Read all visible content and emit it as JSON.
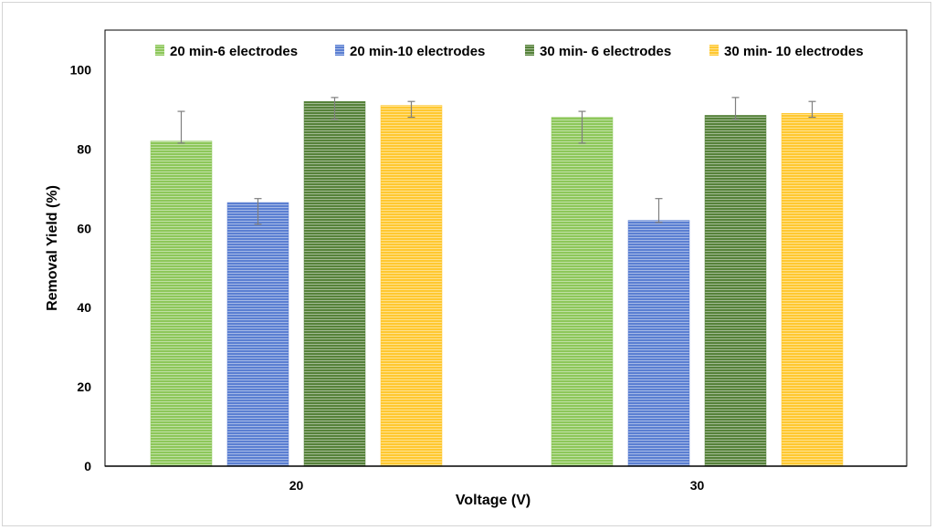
{
  "chart_data": {
    "type": "bar",
    "categories": [
      "20",
      "30"
    ],
    "xlabel": "Voltage (V)",
    "ylabel": "Removal Yield (%)",
    "ylim": [
      0,
      110
    ],
    "yticks": [
      0,
      20,
      40,
      60,
      80,
      100
    ],
    "grid": false,
    "legend_position": "top",
    "series": [
      {
        "name": "20 min-6 electrodes",
        "color": "#8dc75a",
        "values": [
          82,
          88
        ],
        "error_high": [
          89.5,
          89.5
        ],
        "error_low": [
          81.5,
          81.5
        ]
      },
      {
        "name": "20 min-10 electrodes",
        "color": "#5b7fd2",
        "values": [
          66.5,
          62
        ],
        "error_high": [
          67.5,
          67.5
        ],
        "error_low": [
          61,
          61.5
        ]
      },
      {
        "name": "30 min- 6 electrodes",
        "color": "#56823a",
        "values": [
          92,
          88.5
        ],
        "error_high": [
          93,
          93
        ],
        "error_low": [
          87.5,
          87.5
        ]
      },
      {
        "name": "30 min- 10 electrodes",
        "color": "#ffc830",
        "values": [
          91,
          89
        ],
        "error_high": [
          92,
          92
        ],
        "error_low": [
          88,
          88
        ]
      }
    ]
  }
}
